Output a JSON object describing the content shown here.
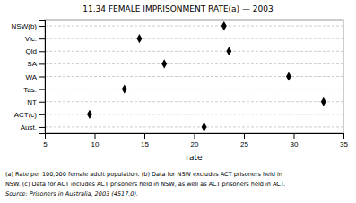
{
  "chart_data": {
    "type": "dot",
    "orientation": "horizontal",
    "title": "11.34   FEMALE IMPRISONMENT RATE(a) — 2003",
    "categories": [
      "NSW(b)",
      "Vic.",
      "Qld",
      "SA",
      "WA",
      "Tas.",
      "NT",
      "ACT(c)",
      "Aust."
    ],
    "values": [
      23.0,
      14.5,
      23.5,
      17.0,
      29.5,
      13.0,
      33.0,
      9.5,
      21.0
    ],
    "xlabel": "rate",
    "xlim": [
      5,
      35
    ],
    "xticks": [
      5,
      10,
      15,
      20,
      25,
      30,
      35
    ],
    "annotations": [
      "(a)  Rate per 100,000 female adult population.  (b)  Data for NSW excludes ACT prisoners held in",
      "NSW.  (c)  Data for ACT includes ACT prisoners held in NSW, as well as ACT prisoners held in ACT.",
      "Source:  Prisoners in Australia, 2003 (4517.0)."
    ],
    "color": "#000000",
    "marker": "diamond",
    "grid": true
  }
}
